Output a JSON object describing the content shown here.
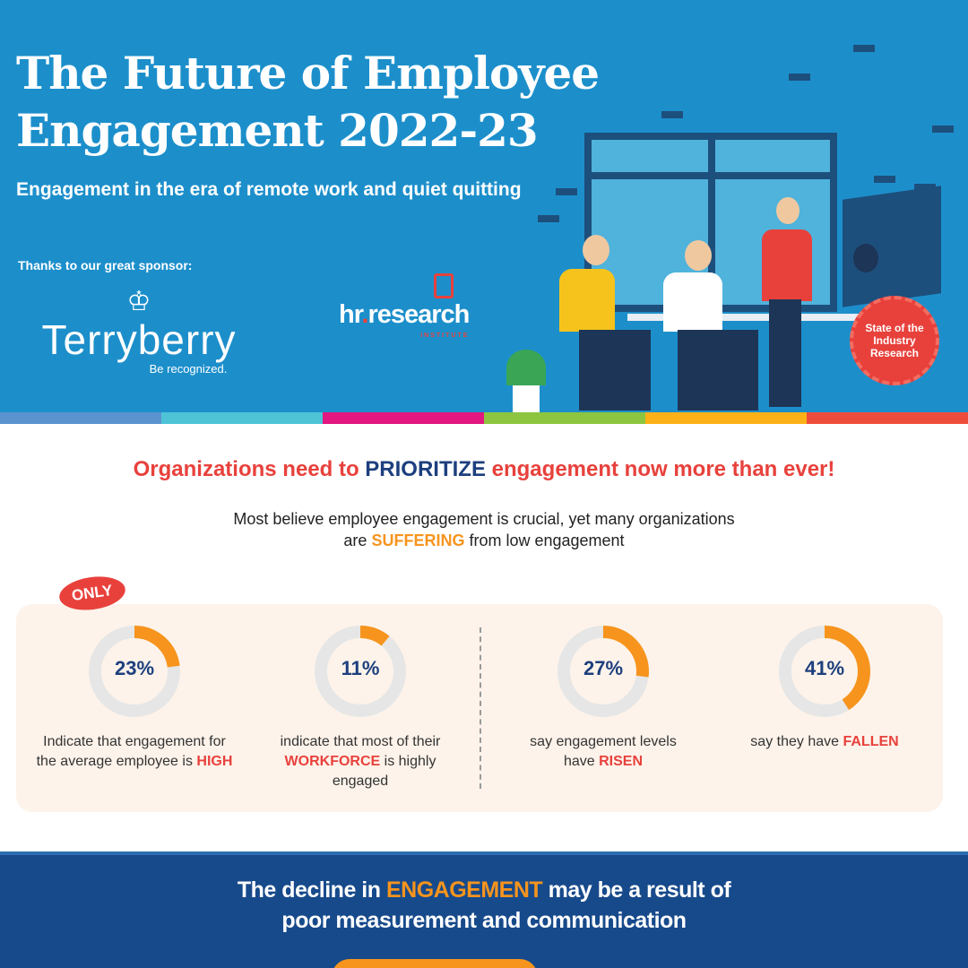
{
  "hero": {
    "title_line1": "The Future of Employee",
    "title_line2": "Engagement 2022-23",
    "subtitle": "Engagement in the era of remote work and quiet quitting",
    "thanks": "Thanks to our great sponsor:",
    "sponsor_name": "Terryberry",
    "sponsor_tagline": "Be recognized.",
    "partner_name_a": "hr",
    "partner_name_b": ".",
    "partner_name_c": "research",
    "partner_sub": "INSTITUTE",
    "badge": "State of the Industry Research"
  },
  "stripe_colors": [
    "#5b93cf",
    "#4ec3d6",
    "#e2177f",
    "#8dc540",
    "#fbb117",
    "#ef4d3c"
  ],
  "section": {
    "heading_a": "Organizations need to ",
    "heading_b": "PRIORITIZE",
    "heading_c": " engagement now more than ever!",
    "intro_line1": "Most believe employee engagement is crucial, yet many organizations",
    "intro_a": "are ",
    "intro_b": "SUFFERING",
    "intro_c": " from low engagement",
    "only": "ONLY"
  },
  "stats": [
    {
      "value": 23,
      "label": "23%",
      "d1": "Indicate that engagement for the average employee is ",
      "d2": "HIGH",
      "d3": ""
    },
    {
      "value": 11,
      "label": "11%",
      "d1": "indicate that most of their ",
      "d2": "WORKFORCE",
      "d3": " is highly engaged"
    },
    {
      "value": 27,
      "label": "27%",
      "d1": "say engagement levels have ",
      "d2": "RISEN",
      "d3": ""
    },
    {
      "value": 41,
      "label": "41%",
      "d1": "say they have ",
      "d2": "FALLEN",
      "d3": ""
    }
  ],
  "footer": {
    "a": "The decline in ",
    "b": "ENGAGEMENT",
    "c": " may be a result of",
    "line2": "poor measurement and communication"
  }
}
